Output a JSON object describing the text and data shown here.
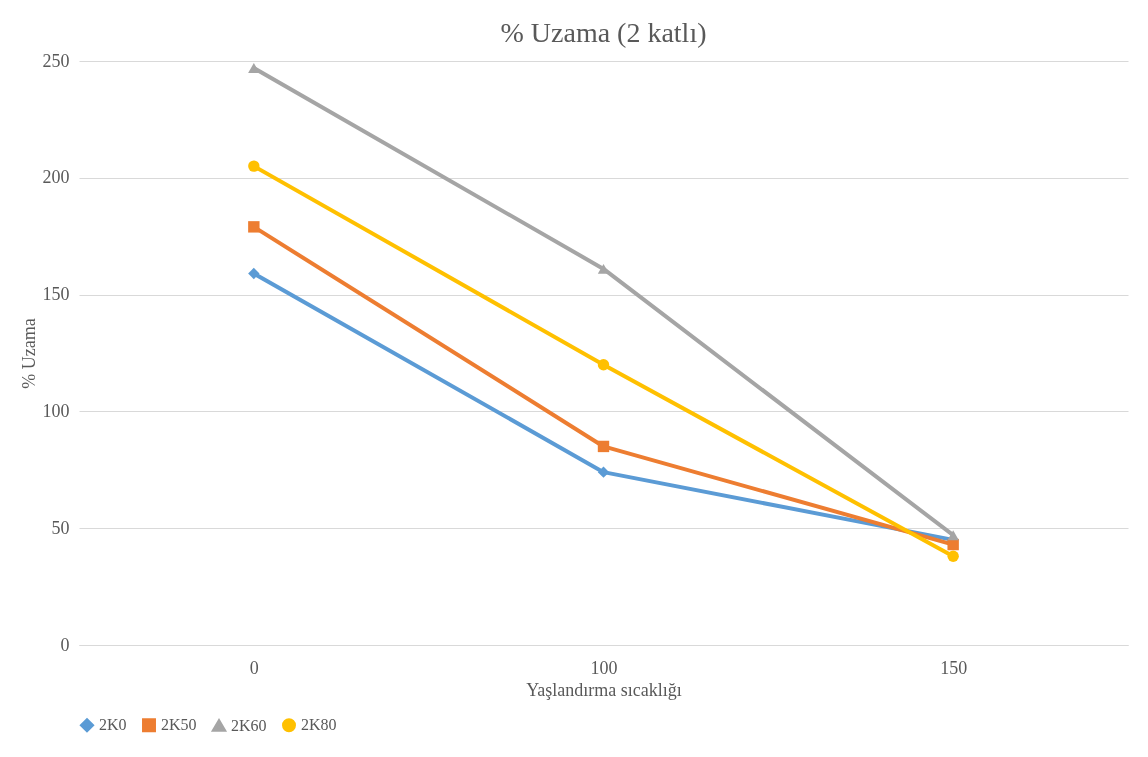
{
  "chart_data": {
    "type": "line",
    "title": "% Uzama (2 katlı)",
    "xlabel": "Yaşlandırma sıcaklığı",
    "ylabel": "% Uzama",
    "categories": [
      "0",
      "100",
      "150"
    ],
    "series": [
      {
        "name": "2K0",
        "color": "#5b9bd5",
        "marker": "diamond",
        "values": [
          159,
          74,
          45
        ]
      },
      {
        "name": "2K50",
        "color": "#ed7d31",
        "marker": "square",
        "values": [
          179,
          85,
          43
        ]
      },
      {
        "name": "2K60",
        "color": "#a5a5a5",
        "marker": "triangle",
        "values": [
          247,
          161,
          47
        ]
      },
      {
        "name": "2K80",
        "color": "#ffc000",
        "marker": "circle",
        "values": [
          205,
          120,
          38
        ]
      }
    ],
    "ylim": [
      0,
      250
    ],
    "yticks": [
      0,
      50,
      100,
      150,
      200,
      250
    ],
    "grid": "y",
    "legend": "bottom",
    "line_style": "solid"
  }
}
